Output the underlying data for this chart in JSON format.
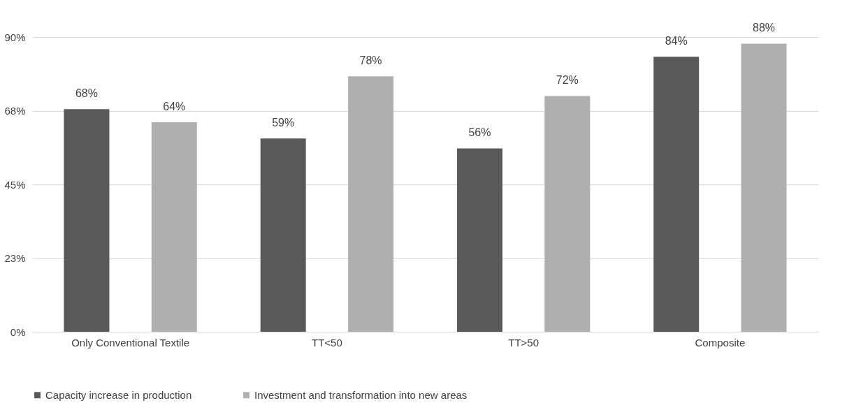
{
  "chart_data": {
    "type": "bar",
    "categories": [
      "Only Conventional Textile",
      "TT<50",
      "TT>50",
      "Composite"
    ],
    "series": [
      {
        "name": "Capacity increase in production",
        "color": "#595959",
        "values": [
          68,
          59,
          56,
          84
        ],
        "value_labels": [
          "68%",
          "59%",
          "56%",
          "84%"
        ]
      },
      {
        "name": "Investment and transformation into new areas",
        "color": "#afafaf",
        "values": [
          64,
          78,
          72,
          88
        ],
        "value_labels": [
          "64%",
          "78%",
          "72%",
          "88%"
        ]
      }
    ],
    "ylim": [
      0,
      90
    ],
    "yticks": [
      {
        "value": 0,
        "label": "0%"
      },
      {
        "value": 22.5,
        "label": "23%"
      },
      {
        "value": 45,
        "label": "45%"
      },
      {
        "value": 67.5,
        "label": "68%"
      },
      {
        "value": 90,
        "label": "90%"
      }
    ],
    "grid": "y",
    "legend": "bottom"
  }
}
